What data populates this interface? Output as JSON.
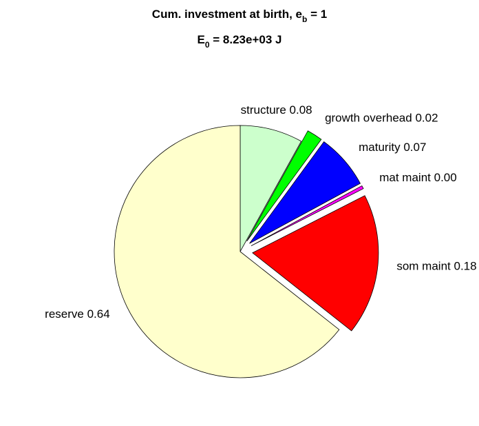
{
  "chart_data": {
    "type": "pie",
    "title": [
      "Cum. investment at birth, e",
      "b",
      " = 1"
    ],
    "subtitle": [
      "E",
      "0",
      " = 8.23e+03 J"
    ],
    "categories": [
      "structure",
      "growth overhead",
      "maturity",
      "mat maint",
      "som maint",
      "reserve"
    ],
    "values": [
      0.08,
      0.02,
      0.07,
      0.004,
      0.18,
      0.64
    ],
    "value_labels": [
      "0.08",
      "0.02",
      "0.07",
      "0.00",
      "0.18",
      "0.64"
    ],
    "colors": [
      "#ccffcc",
      "#00ff00",
      "#0000ff",
      "#ff00ff",
      "#ff0000",
      "#ffffcc"
    ],
    "explode": [
      false,
      true,
      true,
      true,
      true,
      false
    ]
  }
}
